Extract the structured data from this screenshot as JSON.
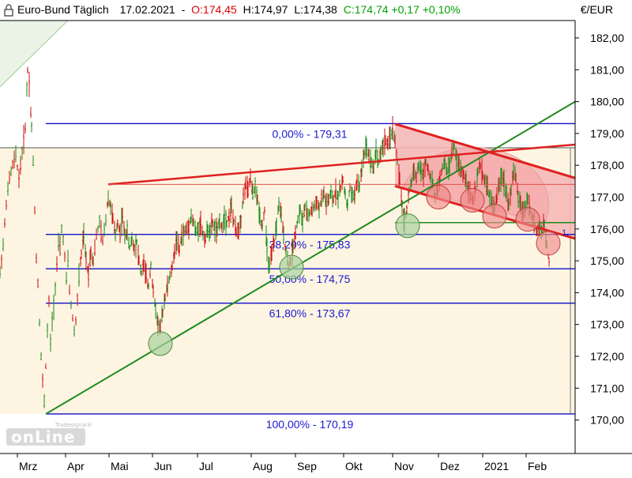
{
  "header": {
    "instrument": "Euro-Bund Täglich",
    "date": "17.02.2021",
    "open": "O:174,45",
    "high": "H:174,97",
    "low": "L:174,38",
    "close_change": "C:174,74 +0,17 +0,10%",
    "colors": {
      "open": "#e00000",
      "close": "#00a000",
      "text": "#000000"
    }
  },
  "currency": "€/EUR",
  "logo": {
    "word": "onLine",
    "small": "Tradesignal®"
  },
  "fib_box_right_label": "1,",
  "chart_data": {
    "type": "candlestick",
    "title": "Euro-Bund Täglich",
    "ylim": [
      169.75,
      183.1
    ],
    "y_ticks": [
      "170,00",
      "171,00",
      "172,00",
      "173,00",
      "174,00",
      "175,00",
      "176,00",
      "177,00",
      "178,00",
      "179,00",
      "180,00",
      "181,00",
      "182,00"
    ],
    "x_months": [
      "Mrz",
      "Apr",
      "Mai",
      "Jun",
      "Jul",
      "Aug",
      "Sep",
      "Okt",
      "Nov",
      "Dez",
      "2021",
      "Feb"
    ],
    "fib_levels": [
      {
        "label": "0,00% - 179,31",
        "value": 179.31
      },
      {
        "label": "38,20% - 175,83",
        "value": 175.83
      },
      {
        "label": "50,00% - 174,75",
        "value": 174.75
      },
      {
        "label": "61,80% - 173,67",
        "value": 173.67
      },
      {
        "label": "100,00% - 170,19",
        "value": 170.19
      }
    ],
    "price_path": [
      [
        0,
        174.6
      ],
      [
        4,
        175.5
      ],
      [
        8,
        176.8
      ],
      [
        12,
        177.6
      ],
      [
        16,
        178.0
      ],
      [
        20,
        178.3
      ],
      [
        24,
        177.6
      ],
      [
        28,
        178.4
      ],
      [
        32,
        179.2
      ],
      [
        35,
        181.0
      ],
      [
        37,
        180.6
      ],
      [
        40,
        179.2
      ],
      [
        42,
        178.1
      ],
      [
        44,
        176.6
      ],
      [
        46,
        175.1
      ],
      [
        48,
        174.3
      ],
      [
        50,
        173.1
      ],
      [
        52,
        172.0
      ],
      [
        54,
        171.2
      ],
      [
        56,
        170.6
      ],
      [
        58,
        171.7
      ],
      [
        60,
        172.8
      ],
      [
        62,
        173.7
      ],
      [
        64,
        172.4
      ],
      [
        66,
        173.1
      ],
      [
        68,
        173.6
      ],
      [
        70,
        174.2
      ],
      [
        72,
        174.9
      ],
      [
        74,
        175.5
      ],
      [
        76,
        175.4
      ],
      [
        78,
        176.0
      ],
      [
        80,
        175.7
      ],
      [
        82,
        175.1
      ],
      [
        84,
        174.4
      ],
      [
        86,
        175.0
      ],
      [
        88,
        174.1
      ],
      [
        90,
        173.6
      ],
      [
        92,
        173.2
      ],
      [
        94,
        172.8
      ],
      [
        96,
        173.1
      ],
      [
        98,
        173.8
      ],
      [
        100,
        174.5
      ],
      [
        103,
        175.2
      ],
      [
        106,
        175.8
      ],
      [
        109,
        175.0
      ],
      [
        112,
        174.6
      ],
      [
        115,
        175.3
      ],
      [
        118,
        175.0
      ],
      [
        122,
        175.8
      ],
      [
        126,
        176.2
      ],
      [
        130,
        175.6
      ],
      [
        134,
        176.3
      ],
      [
        137,
        177.0
      ],
      [
        140,
        176.7
      ],
      [
        143,
        176.3
      ],
      [
        146,
        175.8
      ],
      [
        149,
        176.2
      ],
      [
        152,
        175.9
      ],
      [
        155,
        176.4
      ],
      [
        158,
        175.8
      ],
      [
        161,
        175.9
      ],
      [
        164,
        175.4
      ],
      [
        167,
        175.7
      ],
      [
        170,
        175.4
      ],
      [
        173,
        175.6
      ],
      [
        176,
        175.0
      ],
      [
        179,
        174.6
      ],
      [
        182,
        174.9
      ],
      [
        185,
        174.5
      ],
      [
        188,
        174.2
      ],
      [
        191,
        174.9
      ],
      [
        194,
        174.0
      ],
      [
        197,
        173.5
      ],
      [
        200,
        173.0
      ],
      [
        203,
        172.9
      ],
      [
        206,
        173.4
      ],
      [
        209,
        173.9
      ],
      [
        212,
        174.2
      ],
      [
        215,
        174.5
      ],
      [
        218,
        174.8
      ],
      [
        221,
        175.3
      ],
      [
        224,
        175.7
      ],
      [
        227,
        175.3
      ],
      [
        230,
        175.8
      ],
      [
        233,
        175.9
      ],
      [
        236,
        176.0
      ],
      [
        239,
        176.1
      ],
      [
        242,
        176.4
      ],
      [
        245,
        176.2
      ],
      [
        248,
        175.9
      ],
      [
        251,
        176.0
      ],
      [
        254,
        176.2
      ],
      [
        257,
        175.8
      ],
      [
        260,
        175.7
      ],
      [
        263,
        176.0
      ],
      [
        266,
        175.9
      ],
      [
        269,
        176.2
      ],
      [
        272,
        176.0
      ],
      [
        275,
        175.9
      ],
      [
        278,
        176.3
      ],
      [
        281,
        176.0
      ],
      [
        284,
        176.4
      ],
      [
        287,
        176.2
      ],
      [
        290,
        176.4
      ],
      [
        293,
        176.7
      ],
      [
        296,
        176.2
      ],
      [
        299,
        175.9
      ],
      [
        302,
        176.0
      ],
      [
        305,
        176.3
      ],
      [
        308,
        177.0
      ],
      [
        311,
        177.4
      ],
      [
        314,
        177.2
      ],
      [
        317,
        177.6
      ],
      [
        320,
        177.1
      ],
      [
        323,
        177.3
      ],
      [
        326,
        176.9
      ],
      [
        329,
        176.4
      ],
      [
        332,
        176.1
      ],
      [
        335,
        176.6
      ],
      [
        338,
        175.3
      ],
      [
        341,
        174.8
      ],
      [
        344,
        175.2
      ],
      [
        347,
        175.6
      ],
      [
        350,
        176.1
      ],
      [
        353,
        176.8
      ],
      [
        356,
        176.4
      ],
      [
        359,
        175.8
      ],
      [
        362,
        175.3
      ],
      [
        365,
        174.9
      ],
      [
        368,
        175.0
      ],
      [
        371,
        175.4
      ],
      [
        374,
        175.9
      ],
      [
        377,
        176.3
      ],
      [
        380,
        176.6
      ],
      [
        383,
        176.2
      ],
      [
        386,
        176.7
      ],
      [
        389,
        176.4
      ],
      [
        392,
        176.5
      ],
      [
        395,
        176.6
      ],
      [
        398,
        176.7
      ],
      [
        401,
        176.9
      ],
      [
        404,
        176.6
      ],
      [
        407,
        176.9
      ],
      [
        410,
        177.1
      ],
      [
        413,
        176.8
      ],
      [
        416,
        176.9
      ],
      [
        419,
        177.1
      ],
      [
        422,
        176.9
      ],
      [
        425,
        177.2
      ],
      [
        428,
        177.0
      ],
      [
        431,
        177.3
      ],
      [
        434,
        177.5
      ],
      [
        437,
        177.1
      ],
      [
        440,
        176.7
      ],
      [
        443,
        177.3
      ],
      [
        446,
        177.0
      ],
      [
        449,
        177.1
      ],
      [
        452,
        177.5
      ],
      [
        455,
        177.3
      ],
      [
        458,
        177.9
      ],
      [
        461,
        178.4
      ],
      [
        464,
        178.6
      ],
      [
        467,
        178.3
      ],
      [
        470,
        178.1
      ],
      [
        473,
        177.9
      ],
      [
        476,
        178.5
      ],
      [
        479,
        178.1
      ],
      [
        482,
        178.4
      ],
      [
        485,
        178.6
      ],
      [
        488,
        178.8
      ],
      [
        491,
        178.6
      ],
      [
        494,
        178.9
      ],
      [
        497,
        179.1
      ],
      [
        500,
        178.8
      ],
      [
        503,
        178.1
      ],
      [
        506,
        177.5
      ],
      [
        509,
        176.7
      ],
      [
        512,
        176.2
      ],
      [
        515,
        176.6
      ],
      [
        518,
        177.2
      ],
      [
        521,
        177.5
      ],
      [
        524,
        177.9
      ],
      [
        527,
        177.6
      ],
      [
        530,
        178.0
      ],
      [
        533,
        177.8
      ],
      [
        536,
        177.7
      ],
      [
        539,
        178.1
      ],
      [
        542,
        177.9
      ],
      [
        545,
        177.6
      ],
      [
        548,
        177.4
      ],
      [
        551,
        177.0
      ],
      [
        554,
        177.3
      ],
      [
        557,
        177.6
      ],
      [
        560,
        177.9
      ],
      [
        563,
        178.1
      ],
      [
        566,
        177.8
      ],
      [
        569,
        178.0
      ],
      [
        572,
        178.4
      ],
      [
        575,
        178.6
      ],
      [
        578,
        178.2
      ],
      [
        581,
        178.0
      ],
      [
        584,
        177.8
      ],
      [
        587,
        177.7
      ],
      [
        590,
        177.5
      ],
      [
        593,
        177.3
      ],
      [
        596,
        177.0
      ],
      [
        599,
        176.9
      ],
      [
        602,
        177.2
      ],
      [
        605,
        177.8
      ],
      [
        608,
        178.0
      ],
      [
        611,
        177.7
      ],
      [
        614,
        177.5
      ],
      [
        617,
        177.3
      ],
      [
        620,
        177.0
      ],
      [
        623,
        176.8
      ],
      [
        626,
        176.7
      ],
      [
        629,
        177.0
      ],
      [
        632,
        177.4
      ],
      [
        635,
        177.7
      ],
      [
        638,
        177.5
      ],
      [
        641,
        177.1
      ],
      [
        644,
        176.8
      ],
      [
        647,
        177.2
      ],
      [
        650,
        177.8
      ],
      [
        653,
        177.6
      ],
      [
        656,
        177.0
      ],
      [
        659,
        176.8
      ],
      [
        662,
        176.5
      ],
      [
        665,
        176.7
      ],
      [
        668,
        177.0
      ],
      [
        671,
        176.6
      ],
      [
        674,
        176.3
      ],
      [
        677,
        176.1
      ],
      [
        680,
        175.9
      ],
      [
        683,
        176.0
      ],
      [
        686,
        175.9
      ],
      [
        689,
        176.1
      ],
      [
        692,
        175.5
      ],
      [
        695,
        175.0
      ],
      [
        696,
        174.7
      ]
    ],
    "green_trendline": [
      [
        58,
        170.19
      ],
      [
        728,
        180.0
      ]
    ],
    "green_horizontal": {
      "x1": 500,
      "x2": 728,
      "value": 176.2
    },
    "red_upper_line": [
      [
        137,
        177.4
      ],
      [
        728,
        178.65
      ]
    ],
    "red_channel_top": [
      [
        500,
        179.3
      ],
      [
        728,
        177.6
      ]
    ],
    "red_channel_bottom": [
      [
        500,
        177.35
      ],
      [
        728,
        175.7
      ]
    ],
    "red_thin_line": {
      "x1": 137,
      "x2": 728,
      "value": 177.4
    },
    "resistance_line": {
      "x1": 0,
      "x2": 728,
      "value": 178.55
    },
    "circles_green": [
      [
        203,
        172.4
      ],
      [
        369,
        174.8
      ],
      [
        516,
        176.1
      ]
    ],
    "circles_red": [
      [
        555,
        177.0
      ],
      [
        598,
        176.9
      ],
      [
        626,
        176.4
      ],
      [
        668,
        176.3
      ],
      [
        694,
        175.55
      ]
    ]
  }
}
